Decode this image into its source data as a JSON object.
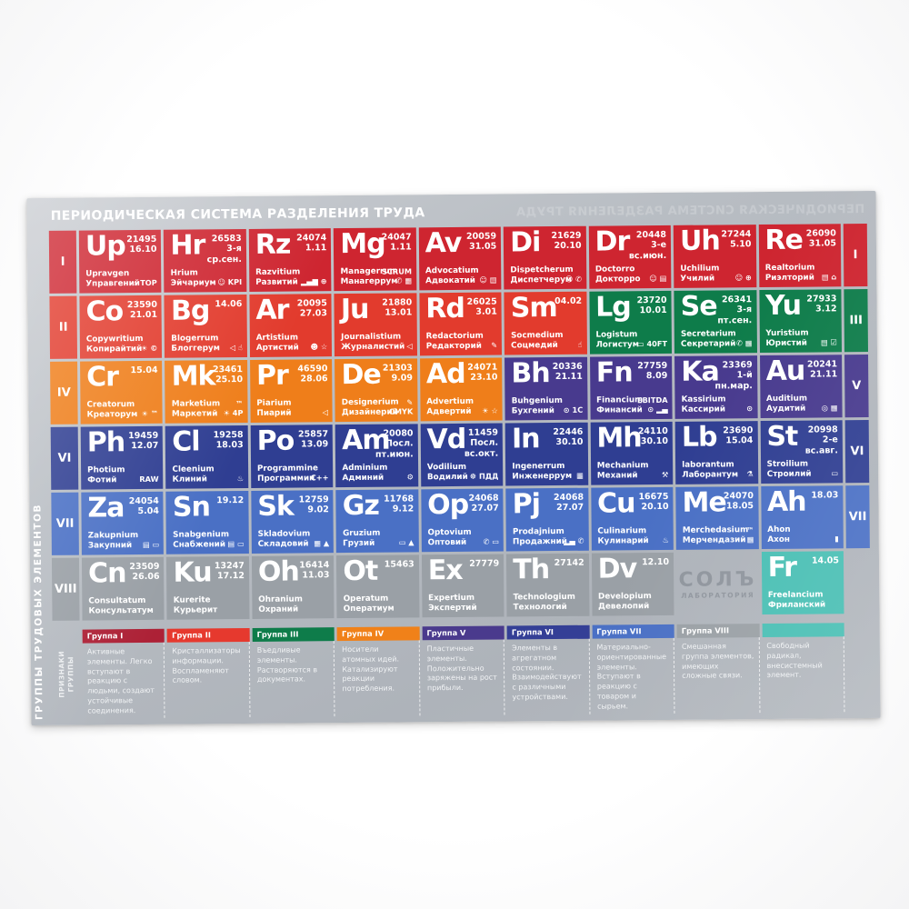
{
  "title": "ПЕРИОДИЧЕСКАЯ СИСТЕМА РАЗДЕЛЕНИЯ ТРУДА",
  "title_mirror": "ПЕРИОДИЧЕСКАЯ СИСТЕМА РАЗДЕЛЕНИЯ ТРУДА",
  "side_label": "ГРУППЫ ТРУДОВЫХ ЭЛЕМЕНТОВ",
  "legend_side_label": "ПРИЗНАКИ\nГРУППЫ",
  "logo": {
    "line1": "СОЛЪ",
    "line2": "ЛАБОРАТОРИЯ"
  },
  "group_colors": {
    "1": "#ce2530",
    "2": "#e23b2d",
    "3": "#0e7c4a",
    "4": "#ef7e1a",
    "5": "#483a8e",
    "6": "#2f3e92",
    "7": "#4a70c5",
    "8": "#9aa0a6",
    "9": "#49bfb4"
  },
  "rows": [
    {
      "left": "I",
      "left_g": "1",
      "right": "I",
      "right_g": "1",
      "cells": [
        {
          "sym": "Up",
          "g": "1",
          "nums": "21495\n16.10",
          "lat": "Upravgen",
          "rus": "Управгений",
          "badge": "☝ TOP"
        },
        {
          "sym": "Hr",
          "g": "1",
          "nums": "26583\n3-я ср.сен.",
          "lat": "Hrium",
          "rus": "Эйчариум",
          "badge": "☺ KPI"
        },
        {
          "sym": "Rz",
          "g": "1",
          "nums": "24074\n1.11",
          "lat": "Razvitium",
          "rus": "Развитий",
          "badge": "▂▄▆ ⊕"
        },
        {
          "sym": "Mg",
          "g": "1",
          "nums": "24047\n1.11",
          "lat": "Managerrum",
          "rus": "Манагеррум",
          "badge": "SCRUM\n✆ ▦"
        },
        {
          "sym": "Av",
          "g": "1",
          "nums": "20059\n31.05",
          "lat": "Advocatium",
          "rus": "Адвокатий",
          "badge": "☺ ▤"
        },
        {
          "sym": "Di",
          "g": "1",
          "nums": "21629\n20.10",
          "lat": "Dispetcherum",
          "rus": "Диспетчерум",
          "badge": "☺ ✆"
        },
        {
          "sym": "Dr",
          "g": "1",
          "nums": "20448\n3-е вс.июн.",
          "lat": "Doctorro",
          "rus": "Докторро",
          "badge": "☺ ▤"
        },
        {
          "sym": "Uh",
          "g": "1",
          "nums": "27244\n5.10",
          "lat": "Uchilium",
          "rus": "Училий",
          "badge": "☺ ⊕"
        },
        {
          "sym": "Re",
          "g": "1",
          "nums": "26090\n31.05",
          "lat": "Realtorium",
          "rus": "Риэлторий",
          "badge": "▤ ⌂"
        }
      ]
    },
    {
      "left": "II",
      "left_g": "2",
      "right": "III",
      "right_g": "3",
      "cells": [
        {
          "sym": "Co",
          "g": "2",
          "nums": "23590\n21.01",
          "lat": "Copywritium",
          "rus": "Копирайтий",
          "badge": "☀ ©"
        },
        {
          "sym": "Bg",
          "g": "2",
          "nums": "14.06",
          "lat": "Blogerrum",
          "rus": "Блоггерум",
          "badge": "◁ ☝"
        },
        {
          "sym": "Ar",
          "g": "2",
          "nums": "20095\n27.03",
          "lat": "Artistium",
          "rus": "Артистий",
          "badge": "☻ ☆"
        },
        {
          "sym": "Ju",
          "g": "2",
          "nums": "21880\n13.01",
          "lat": "Journalistium",
          "rus": "Журналистий",
          "badge": "◁"
        },
        {
          "sym": "Rd",
          "g": "2",
          "nums": "26025\n3.01",
          "lat": "Redactorium",
          "rus": "Редакторий",
          "badge": "✎"
        },
        {
          "sym": "Sm",
          "g": "2",
          "nums": "04.02",
          "lat": "Socmedium",
          "rus": "Соцмедий",
          "badge": "☝"
        },
        {
          "sym": "Lg",
          "g": "3",
          "nums": "23720\n10.01",
          "lat": "Logistum",
          "rus": "Логистум",
          "badge": "▭ 40FT"
        },
        {
          "sym": "Se",
          "g": "3",
          "nums": "26341\n3-я пт.сен.",
          "lat": "Secretarium",
          "rus": "Секретарий",
          "badge": "✆ ▦"
        },
        {
          "sym": "Yu",
          "g": "3",
          "nums": "27933\n3.12",
          "lat": "Yuristium",
          "rus": "Юристий",
          "badge": "▤ ☑"
        }
      ]
    },
    {
      "left": "IV",
      "left_g": "4",
      "right": "V",
      "right_g": "5",
      "cells": [
        {
          "sym": "Cr",
          "g": "4",
          "nums": "15.04",
          "lat": "Creatorum",
          "rus": "Креаторум",
          "badge": "☀ ™"
        },
        {
          "sym": "Mk",
          "g": "4",
          "nums": "23461\n25.10",
          "lat": "Marketium",
          "rus": "Маркетий",
          "badge": "™\n☀ 4P"
        },
        {
          "sym": "Pr",
          "g": "4",
          "nums": "46590\n28.06",
          "lat": "Piarium",
          "rus": "Пиарий",
          "badge": "◁"
        },
        {
          "sym": "De",
          "g": "4",
          "nums": "21303\n9.09",
          "lat": "Designerium",
          "rus": "Дизайнерий",
          "badge": "✎\nCMYK"
        },
        {
          "sym": "Ad",
          "g": "4",
          "nums": "24071\n23.10",
          "lat": "Advertium",
          "rus": "Адвертий",
          "badge": "☀ ☆"
        },
        {
          "sym": "Bh",
          "g": "5",
          "nums": "20336\n21.11",
          "lat": "Buhgenium",
          "rus": "Бухгений",
          "badge": "⊙ 1C"
        },
        {
          "sym": "Fn",
          "g": "5",
          "nums": "27759\n8.09",
          "lat": "Financium",
          "rus": "Финансий",
          "badge": "EBITDA\n⊙ ▂▄"
        },
        {
          "sym": "Ka",
          "g": "5",
          "nums": "23369\n1-й пн.мар.",
          "lat": "Kassirium",
          "rus": "Кассирий",
          "badge": "⊙"
        },
        {
          "sym": "Au",
          "g": "5",
          "nums": "20241\n21.11",
          "lat": "Auditium",
          "rus": "Аудитий",
          "badge": "◎ ▦"
        }
      ]
    },
    {
      "left": "VI",
      "left_g": "6",
      "right": "VI",
      "right_g": "6",
      "cells": [
        {
          "sym": "Ph",
          "g": "6",
          "nums": "19459\n12.07",
          "lat": "Photium",
          "rus": "Фотий",
          "badge": "RAW"
        },
        {
          "sym": "Cl",
          "g": "6",
          "nums": "19258\n18.03",
          "lat": "Cleenium",
          "rus": "Клиний",
          "badge": "♨"
        },
        {
          "sym": "Po",
          "g": "6",
          "nums": "25857\n13.09",
          "lat": "Programmine",
          "rus": "Программин",
          "badge": "C++"
        },
        {
          "sym": "Am",
          "g": "6",
          "nums": "20080\nПосл.\nпт.июн.",
          "lat": "Adminium",
          "rus": "Админий",
          "badge": "⚙"
        },
        {
          "sym": "Vd",
          "g": "6",
          "nums": "11459\nПосл.\nвс.окт.",
          "lat": "Vodilium",
          "rus": "Водилий",
          "badge": "☸ ПДД"
        },
        {
          "sym": "In",
          "g": "6",
          "nums": "22446\n30.10",
          "lat": "Ingenerrum",
          "rus": "Инженеррум",
          "badge": "▦"
        },
        {
          "sym": "Mh",
          "g": "6",
          "nums": "24110\n30.10",
          "lat": "Mechanium",
          "rus": "Механий",
          "badge": "⚒"
        },
        {
          "sym": "Lb",
          "g": "6",
          "nums": "23690\n15.04",
          "lat": "laborantum",
          "rus": "Лаборантум",
          "badge": "⚗"
        },
        {
          "sym": "St",
          "g": "6",
          "nums": "20998\n2-е вс.авг.",
          "lat": "Stroilium",
          "rus": "Строилий",
          "badge": "▭"
        }
      ]
    },
    {
      "left": "VII",
      "left_g": "7",
      "right": "VII",
      "right_g": "7",
      "cells": [
        {
          "sym": "Za",
          "g": "7",
          "nums": "24054\n5.04",
          "lat": "Zakupnium",
          "rus": "Закупний",
          "badge": "▤ ▭"
        },
        {
          "sym": "Sn",
          "g": "7",
          "nums": "19.12",
          "lat": "Snabgenium",
          "rus": "Снабжений",
          "badge": "▤ ▭"
        },
        {
          "sym": "Sk",
          "g": "7",
          "nums": "12759\n9.02",
          "lat": "Skladovium",
          "rus": "Складовий",
          "badge": "▦ ▲"
        },
        {
          "sym": "Gz",
          "g": "7",
          "nums": "11768\n9.12",
          "lat": "Gruzium",
          "rus": "Грузий",
          "badge": "▭ ▲"
        },
        {
          "sym": "Op",
          "g": "7",
          "nums": "24068\n27.07",
          "lat": "Optovium",
          "rus": "Оптовий",
          "badge": "✆ ▭"
        },
        {
          "sym": "Pj",
          "g": "7",
          "nums": "24068\n27.07",
          "lat": "Prodajnium",
          "rus": "Продажний",
          "badge": "▂▄ ✆"
        },
        {
          "sym": "Cu",
          "g": "7",
          "nums": "16675\n20.10",
          "lat": "Culinarium",
          "rus": "Кулинарий",
          "badge": "♨"
        },
        {
          "sym": "Me",
          "g": "7",
          "nums": "24070\n18.05",
          "lat": "Merchedasium",
          "rus": "Мерчендазий",
          "badge": "™\n▦"
        },
        {
          "sym": "Ah",
          "g": "7",
          "nums": "18.03",
          "lat": "Ahon",
          "rus": "Ахон",
          "badge": "▮"
        }
      ]
    },
    {
      "left": "VIII",
      "left_g": "8",
      "right": "",
      "right_g": "",
      "cells": [
        {
          "sym": "Cn",
          "g": "8",
          "nums": "23509\n26.06",
          "lat": "Consultatum",
          "rus": "Консультатум",
          "badge": ""
        },
        {
          "sym": "Ku",
          "g": "8",
          "nums": "13247\n17.12",
          "lat": "Kurerite",
          "rus": "Курьерит",
          "badge": ""
        },
        {
          "sym": "Oh",
          "g": "8",
          "nums": "16414\n11.03",
          "lat": "Ohranium",
          "rus": "Охраний",
          "badge": ""
        },
        {
          "sym": "Ot",
          "g": "8",
          "nums": "15463",
          "lat": "Operatum",
          "rus": "Оператиум",
          "badge": ""
        },
        {
          "sym": "Ex",
          "g": "8",
          "nums": "27779",
          "lat": "Expertium",
          "rus": "Экспертий",
          "badge": ""
        },
        {
          "sym": "Th",
          "g": "8",
          "nums": "27142",
          "lat": "Technologium",
          "rus": "Технологий",
          "badge": ""
        },
        {
          "sym": "Dv",
          "g": "8",
          "nums": "12.10",
          "lat": "Developium",
          "rus": "Девелопий",
          "badge": ""
        },
        {
          "logo": true
        },
        {
          "sym": "Fr",
          "g": "9",
          "nums": "14.05",
          "lat": "Freelancium",
          "rus": "Фриланский",
          "badge": ""
        }
      ]
    }
  ],
  "legend": [
    {
      "label": "Группа I",
      "color": "#ad2136",
      "text": "Активные элементы. Легко вступают в реакцию с людьми, создают устойчивые соединения."
    },
    {
      "label": "Группа II",
      "color": "#e6392e",
      "text": "Кристаллизаторы информации. Воспламеняют словом."
    },
    {
      "label": "Группа III",
      "color": "#0e7c4a",
      "text": "Въедливые элементы. Растворяются в документах."
    },
    {
      "label": "Группа IV",
      "color": "#f08119",
      "text": "Носители атомных идей. Катализируют реакции потребления."
    },
    {
      "label": "Группа V",
      "color": "#4a3a8d",
      "text": "Пластичные элементы. Положительно заряжены на рост прибыли."
    },
    {
      "label": "Группа VI",
      "color": "#343f96",
      "text": "Элементы в агрегатном состоянии. Взаимодействуют с различными устройствами."
    },
    {
      "label": "Группа VII",
      "color": "#4a70c5",
      "text": "Материально-ориентированные элементы. Вступают в реакцию с товаром и сырьем."
    },
    {
      "label": "Группа VIII",
      "color": "#9aa0a5",
      "text": "Смешанная группа элементов, имеющих сложные связи."
    },
    {
      "label": "",
      "color": "#49bfb4",
      "text": "Свободный радикал, внесистемный элемент."
    }
  ]
}
